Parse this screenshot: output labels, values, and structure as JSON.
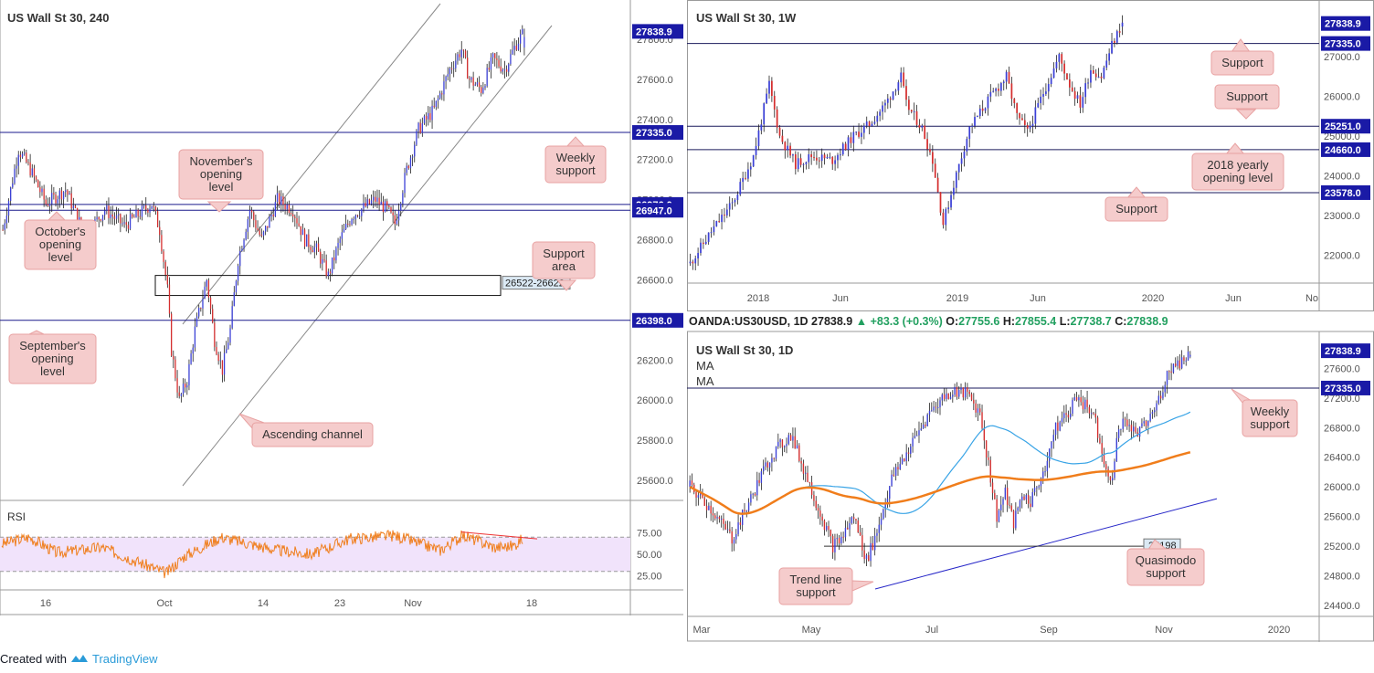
{
  "colors": {
    "up": "#3b40d6",
    "down": "#d52e2e",
    "level_line": "#1a1a8c",
    "price_tag": "#1a1aa6",
    "callout_bg": "#f5cccc",
    "callout_border": "#e8a2a2",
    "rsi_line": "#f07f1e",
    "rsi_fill": "#f1e3fb",
    "ma_blue": "#39a4e6",
    "ma_orange": "#f07d1b",
    "trend": "#2727c8"
  },
  "footer": {
    "created_with": "Created with",
    "brand": "TradingView"
  },
  "chart_data": [
    {
      "id": "h4",
      "type": "candlestick",
      "title": "US Wall St 30, 240",
      "ylim": [
        25500,
        27950
      ],
      "y_ticks": [
        "27800.0",
        "27600.0",
        "27400.0",
        "27200.0",
        "27000.0",
        "26800.0",
        "26600.0",
        "26400.0",
        "26200.0",
        "26000.0",
        "25800.0",
        "25600.0"
      ],
      "x_ticks": [
        "16",
        "Oct",
        "14",
        "23",
        "Nov",
        "18"
      ],
      "last_price": "27838.9",
      "levels": [
        {
          "label": "27335.0",
          "value": 27335
        },
        {
          "label": "26976.0",
          "value": 26976
        },
        {
          "label": "26947.0",
          "value": 26947
        },
        {
          "label": "26398.0",
          "value": 26398
        }
      ],
      "zone": {
        "label": "26522-26622",
        "low": 26522,
        "high": 26622
      },
      "channel_label": "Ascending channel",
      "callouts": [
        "Weekly support",
        "November's opening level",
        "October's opening level",
        "Support area",
        "September's opening level",
        "Ascending channel"
      ],
      "rsi": {
        "label": "RSI",
        "ticks": [
          "75.00",
          "50.00",
          "25.00"
        ],
        "upper": 70,
        "lower": 30
      },
      "series_anchors": [
        [
          0,
          26850
        ],
        [
          8,
          27250
        ],
        [
          14,
          27150
        ],
        [
          22,
          26980
        ],
        [
          32,
          27050
        ],
        [
          42,
          26820
        ],
        [
          52,
          26950
        ],
        [
          62,
          26870
        ],
        [
          76,
          26980
        ],
        [
          80,
          26850
        ],
        [
          84,
          26550
        ],
        [
          86,
          26250
        ],
        [
          90,
          26000
        ],
        [
          94,
          26100
        ],
        [
          98,
          26350
        ],
        [
          104,
          26600
        ],
        [
          108,
          26300
        ],
        [
          112,
          26150
        ],
        [
          116,
          26350
        ],
        [
          120,
          26700
        ],
        [
          126,
          26950
        ],
        [
          132,
          26800
        ],
        [
          140,
          27000
        ],
        [
          148,
          26950
        ],
        [
          154,
          26800
        ],
        [
          160,
          26750
        ],
        [
          166,
          26620
        ],
        [
          172,
          26800
        ],
        [
          178,
          26920
        ],
        [
          184,
          26960
        ],
        [
          190,
          27000
        ],
        [
          196,
          26950
        ],
        [
          200,
          26880
        ],
        [
          206,
          27150
        ],
        [
          212,
          27350
        ],
        [
          220,
          27450
        ],
        [
          228,
          27650
        ],
        [
          234,
          27750
        ],
        [
          238,
          27600
        ],
        [
          244,
          27550
        ],
        [
          250,
          27700
        ],
        [
          256,
          27650
        ],
        [
          262,
          27780
        ],
        [
          266,
          27838.9
        ]
      ]
    },
    {
      "id": "w1",
      "type": "candlestick",
      "title": "US Wall St 30, 1W",
      "ylim": [
        21300,
        28200
      ],
      "y_ticks": [
        "27000.0",
        "26000.0",
        "25000.0",
        "24000.0",
        "23000.0",
        "22000.0"
      ],
      "x_ticks": [
        "2018",
        "Jun",
        "2019",
        "Jun",
        "2020",
        "Jun",
        "No"
      ],
      "last_price": "27838.9",
      "levels": [
        {
          "label": "27335.0",
          "value": 27335
        },
        {
          "label": "25251.0",
          "value": 25251
        },
        {
          "label": "24660.0",
          "value": 24660
        },
        {
          "label": "23578.0",
          "value": 23578
        }
      ],
      "callouts": [
        "Support",
        "Support",
        "2018 yearly opening level",
        "Support"
      ],
      "series_anchors": [
        [
          0,
          21800
        ],
        [
          8,
          22600
        ],
        [
          16,
          23300
        ],
        [
          24,
          24500
        ],
        [
          30,
          26300
        ],
        [
          34,
          25000
        ],
        [
          40,
          24300
        ],
        [
          46,
          24500
        ],
        [
          54,
          24400
        ],
        [
          62,
          25000
        ],
        [
          68,
          25300
        ],
        [
          74,
          25800
        ],
        [
          80,
          26500
        ],
        [
          82,
          25800
        ],
        [
          88,
          25200
        ],
        [
          92,
          24400
        ],
        [
          96,
          22800
        ],
        [
          100,
          23800
        ],
        [
          106,
          25200
        ],
        [
          114,
          26000
        ],
        [
          120,
          26500
        ],
        [
          124,
          25500
        ],
        [
          128,
          25100
        ],
        [
          134,
          26100
        ],
        [
          140,
          27000
        ],
        [
          144,
          26300
        ],
        [
          148,
          25800
        ],
        [
          152,
          26700
        ],
        [
          156,
          26500
        ],
        [
          160,
          27300
        ],
        [
          164,
          27838.9
        ]
      ]
    },
    {
      "id": "d1",
      "type": "candlestick",
      "title": "US Wall St 30, 1D",
      "header": {
        "symbol": "OANDA:US30USD, 1D",
        "price": "27838.9",
        "change": "+83.3 (+0.3%)",
        "o_label": "O:",
        "o": "27755.6",
        "h_label": "H:",
        "h": "27855.4",
        "l_label": "L:",
        "l": "27738.7",
        "c_label": "C:",
        "c": "27838.9"
      },
      "legend": [
        "MA",
        "MA"
      ],
      "ylim": [
        24250,
        28050
      ],
      "y_ticks": [
        "27600.0",
        "27200.0",
        "26800.0",
        "26400.0",
        "26000.0",
        "25600.0",
        "25200.0",
        "24800.0",
        "24400.0"
      ],
      "x_ticks": [
        "Mar",
        "May",
        "Jul",
        "Sep",
        "Nov",
        "2020"
      ],
      "last_price": "27838.9",
      "levels": [
        {
          "label": "27335.0",
          "value": 27335
        }
      ],
      "qm_level": {
        "label": "25198",
        "value": 25198
      },
      "callouts": [
        "Weekly support",
        "Quasimodo support",
        "Trend line support"
      ],
      "series_anchors": [
        [
          0,
          26000
        ],
        [
          10,
          25700
        ],
        [
          20,
          25300
        ],
        [
          30,
          25900
        ],
        [
          38,
          26400
        ],
        [
          48,
          26700
        ],
        [
          56,
          26100
        ],
        [
          64,
          25500
        ],
        [
          68,
          25200
        ],
        [
          72,
          25300
        ],
        [
          78,
          25600
        ],
        [
          84,
          25000
        ],
        [
          88,
          25300
        ],
        [
          92,
          25700
        ],
        [
          96,
          26100
        ],
        [
          102,
          26400
        ],
        [
          108,
          26700
        ],
        [
          114,
          27000
        ],
        [
          120,
          27200
        ],
        [
          126,
          27300
        ],
        [
          132,
          27250
        ],
        [
          138,
          27000
        ],
        [
          142,
          26300
        ],
        [
          146,
          25600
        ],
        [
          150,
          25900
        ],
        [
          154,
          25500
        ],
        [
          158,
          25900
        ],
        [
          162,
          25800
        ],
        [
          168,
          26200
        ],
        [
          174,
          26800
        ],
        [
          180,
          27000
        ],
        [
          184,
          27250
        ],
        [
          188,
          27100
        ],
        [
          192,
          27000
        ],
        [
          196,
          26500
        ],
        [
          200,
          26000
        ],
        [
          204,
          26800
        ],
        [
          208,
          26900
        ],
        [
          212,
          26700
        ],
        [
          216,
          26800
        ],
        [
          222,
          27100
        ],
        [
          228,
          27600
        ],
        [
          234,
          27700
        ],
        [
          238,
          27838.9
        ]
      ]
    }
  ]
}
